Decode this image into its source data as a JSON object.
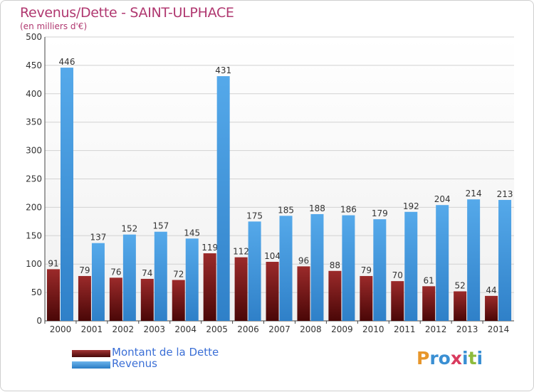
{
  "chart_data": {
    "type": "bar",
    "title": "Revenus/Dette - SAINT-ULPHACE",
    "subtitle": "(en milliers d'€)",
    "categories": [
      "2000",
      "2001",
      "2002",
      "2003",
      "2004",
      "2005",
      "2006",
      "2007",
      "2008",
      "2009",
      "2010",
      "2011",
      "2012",
      "2013",
      "2014"
    ],
    "series": [
      {
        "name": "Montant de la Dette",
        "color": "#7a1b1b",
        "values": [
          91,
          79,
          76,
          74,
          72,
          119,
          112,
          104,
          96,
          88,
          79,
          70,
          61,
          52,
          44
        ]
      },
      {
        "name": "Revenus",
        "color": "#3f95d9",
        "values": [
          446,
          137,
          152,
          157,
          145,
          431,
          175,
          185,
          188,
          186,
          179,
          192,
          204,
          214,
          213
        ]
      }
    ],
    "ylim": [
      0,
      500
    ],
    "yticks": [
      0,
      50,
      100,
      150,
      200,
      250,
      300,
      350,
      400,
      450,
      500
    ],
    "grid": true,
    "legend": "bottom-left"
  },
  "logo": {
    "text": "Proxiti",
    "letters": [
      "P",
      "r",
      "o",
      "x",
      "i",
      "t",
      "i"
    ],
    "colors": [
      "#e7962b",
      "#3a8fd3",
      "#3a8fd3",
      "#d93b5e",
      "#3a8fd3",
      "#8dbb3c",
      "#3a8fd3"
    ]
  }
}
